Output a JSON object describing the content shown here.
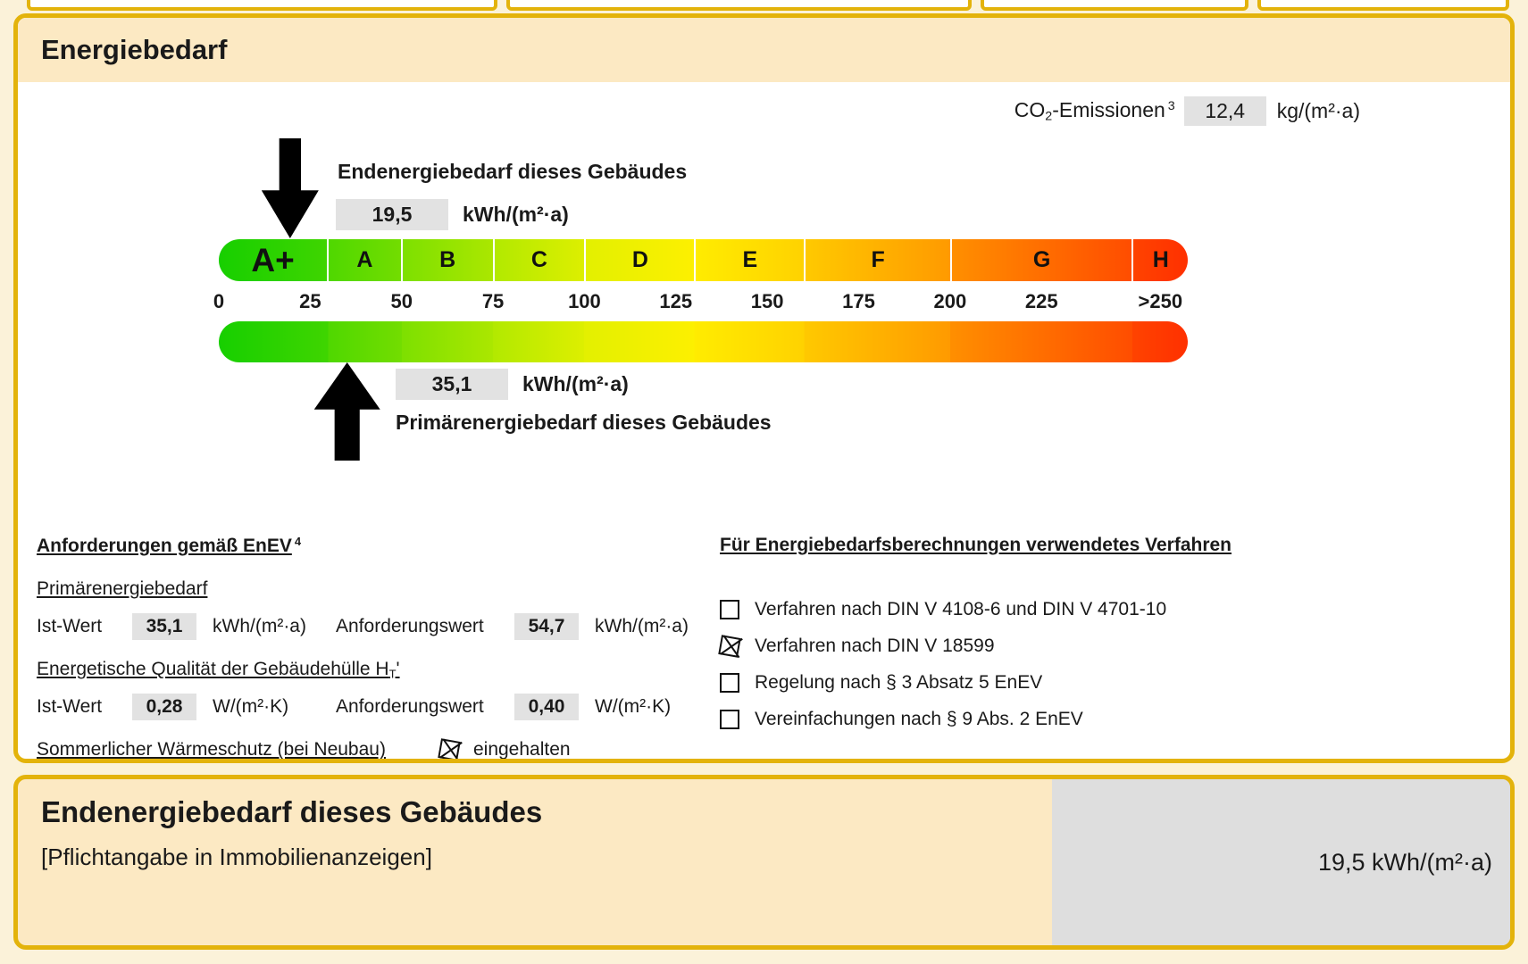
{
  "colors": {
    "page_bg": "#FBF2D9",
    "border_gold": "#E3B30B",
    "band_bg": "#FCE9C3",
    "field_bg": "#E2E2E2",
    "panel_bg": "#DEDEDE",
    "text": "#1a1a1a",
    "arrow": "#000000"
  },
  "header": {
    "title": "Energiebedarf"
  },
  "co2": {
    "prefix": "CO",
    "sub": "2",
    "rest": "-Emissionen",
    "sup": "3",
    "value": "12,4",
    "unit": "kg/(m²·a)"
  },
  "end_energy": {
    "label": "Endenergiebedarf dieses Gebäudes",
    "value": "19,5",
    "unit": "kWh/(m²·a)"
  },
  "primary_energy": {
    "label": "Primärenergiebedarf dieses Gebäudes",
    "value": "35,1",
    "unit": "kWh/(m²·a)"
  },
  "chart_data": {
    "type": "scale",
    "title": "Energiebedarf Farbskala A+ bis H",
    "xlabel": "kWh/(m²·a)",
    "max_value": 250,
    "overflow_units": 15,
    "bands": [
      {
        "label": "A+",
        "range": [
          0,
          30
        ],
        "units": 30,
        "color_from": "#17cf00",
        "color_to": "#3fd500"
      },
      {
        "label": "A",
        "range": [
          30,
          50
        ],
        "units": 20,
        "color_from": "#4fd800",
        "color_to": "#73dd00"
      },
      {
        "label": "B",
        "range": [
          50,
          75
        ],
        "units": 25,
        "color_from": "#7de000",
        "color_to": "#abe700"
      },
      {
        "label": "C",
        "range": [
          75,
          100
        ],
        "units": 25,
        "color_from": "#b2e900",
        "color_to": "#ddef00"
      },
      {
        "label": "D",
        "range": [
          100,
          130
        ],
        "units": 30,
        "color_from": "#e3f000",
        "color_to": "#fdf000"
      },
      {
        "label": "E",
        "range": [
          130,
          160
        ],
        "units": 30,
        "color_from": "#ffec00",
        "color_to": "#ffd200"
      },
      {
        "label": "F",
        "range": [
          160,
          200
        ],
        "units": 40,
        "color_from": "#ffc900",
        "color_to": "#ff9a00"
      },
      {
        "label": "G",
        "range": [
          200,
          250
        ],
        "units": 50,
        "color_from": "#ff8f00",
        "color_to": "#ff4d00"
      },
      {
        "label": "H",
        "range": [
          250,
          265
        ],
        "units": 15,
        "color_from": "#ff4300",
        "color_to": "#ff3000"
      }
    ],
    "ticks": [
      "0",
      "25",
      "50",
      "75",
      "100",
      "125",
      "150",
      "175",
      "200",
      "225",
      ">250"
    ],
    "markers": [
      {
        "name": "Endenergiebedarf dieses Gebäudes",
        "value": 19.5,
        "unit": "kWh/(m²·a)",
        "direction": "down"
      },
      {
        "name": "Primärenergiebedarf dieses Gebäudes",
        "value": 35.1,
        "unit": "kWh/(m²·a)",
        "direction": "up"
      }
    ]
  },
  "requirements": {
    "heading": "Anforderungen gemäß EnEV",
    "heading_sup": "4",
    "primary": {
      "section": "Primärenergiebedarf",
      "ist_label": "Ist-Wert",
      "ist_value": "35,1",
      "ist_unit": "kWh/(m²·a)",
      "req_label": "Anforderungswert",
      "req_value": "54,7",
      "req_unit": "kWh/(m²·a)"
    },
    "envelope": {
      "section_prefix": "Energetische Qualität der Gebäudehülle H",
      "section_sub": "T",
      "section_suffix": "'",
      "ist_label": "Ist-Wert",
      "ist_value": "0,28",
      "ist_unit": "W/(m²·K)",
      "req_label": "Anforderungswert",
      "req_value": "0,40",
      "req_unit": "W/(m²·K)"
    },
    "summer": {
      "label": "Sommerlicher Wärmeschutz (bei Neubau)",
      "status": "eingehalten",
      "checked": true
    }
  },
  "methods": {
    "heading": "Für Energiebedarfsberechnungen verwendetes Verfahren",
    "items": [
      {
        "label": "Verfahren nach DIN V 4108-6 und DIN V 4701-10",
        "checked": false
      },
      {
        "label": "Verfahren nach DIN V 18599",
        "checked": true
      },
      {
        "label": "Regelung nach § 3 Absatz 5 EnEV",
        "checked": false
      },
      {
        "label": "Vereinfachungen nach § 9 Abs. 2 EnEV",
        "checked": false
      }
    ]
  },
  "footer": {
    "title": "Endenergiebedarf dieses Gebäudes",
    "subtitle": "[Pflichtangabe in Immobilienanzeigen]",
    "value": "19,5 kWh/(m²·a)"
  }
}
